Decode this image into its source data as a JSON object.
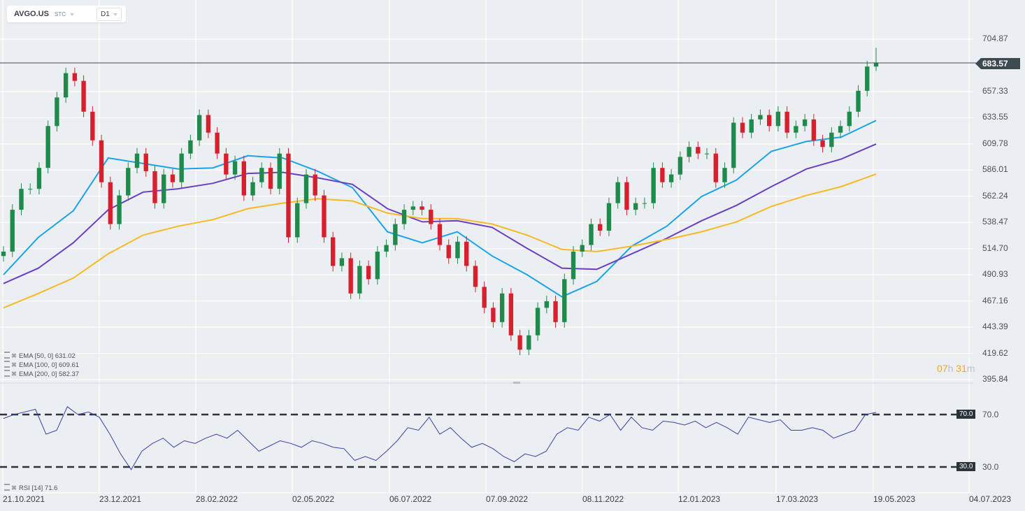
{
  "header": {
    "symbol": "AVGO.US",
    "type": "STC",
    "timeframe": "D1"
  },
  "legend": {
    "ema": [
      "EMA [50,  0] 631.02",
      "EMA [100,  0] 609.61",
      "EMA [200,  0] 582.37"
    ],
    "rsi": "RSI [14] 71.6"
  },
  "countdown": {
    "hours": "07",
    "h": "h",
    "minutes": "31",
    "m": "m"
  },
  "price_axis": [
    "704.87",
    "657.33",
    "633.55",
    "609.78",
    "586.01",
    "562.24",
    "538.47",
    "514.70",
    "490.93",
    "467.16",
    "443.39",
    "419.62",
    "395.84"
  ],
  "current_price": "683.57",
  "rsi_axis": {
    "upper": "70.0",
    "lower": "30.0",
    "upper_tag": "70.0",
    "lower_tag": "30.0"
  },
  "date_axis": [
    "21.10.2021",
    "23.12.2021",
    "28.02.2022",
    "02.05.2022",
    "06.07.2022",
    "07.09.2022",
    "08.11.2022",
    "12.01.2023",
    "17.03.2023",
    "19.05.2023",
    "04.07.2023"
  ],
  "colors": {
    "up": "#1e8a4c",
    "down": "#d81f2e",
    "ema50": "#1aa3e8",
    "ema100": "#6a3fc4",
    "ema200": "#f7b924",
    "rsi": "#3a3fa8",
    "background": "#eceff2"
  },
  "chart_data": [
    {
      "type": "candlestick",
      "ylim": [
        395.84,
        704.87
      ],
      "grid": true,
      "ohlc": [
        [
          508,
          517,
          503,
          512
        ],
        [
          512,
          555,
          507,
          550
        ],
        [
          550,
          574,
          545,
          569
        ],
        [
          569,
          574,
          564,
          569
        ],
        [
          569,
          593,
          564,
          588
        ],
        [
          588,
          631,
          583,
          626
        ],
        [
          626,
          657,
          621,
          652
        ],
        [
          652,
          679,
          647,
          674
        ],
        [
          674,
          679,
          662,
          667
        ],
        [
          667,
          672,
          634,
          639
        ],
        [
          639,
          644,
          608,
          613
        ],
        [
          613,
          618,
          570,
          575
        ],
        [
          575,
          580,
          532,
          537
        ],
        [
          537,
          568,
          532,
          563
        ],
        [
          563,
          593,
          558,
          588
        ],
        [
          588,
          606,
          583,
          601
        ],
        [
          601,
          606,
          580,
          585
        ],
        [
          585,
          590,
          551,
          556
        ],
        [
          556,
          587,
          551,
          582
        ],
        [
          582,
          587,
          570,
          575
        ],
        [
          575,
          606,
          570,
          601
        ],
        [
          601,
          618,
          596,
          613
        ],
        [
          613,
          641,
          608,
          636
        ],
        [
          636,
          641,
          615,
          620
        ],
        [
          620,
          625,
          596,
          601
        ],
        [
          601,
          606,
          577,
          582
        ],
        [
          582,
          599,
          577,
          594
        ],
        [
          594,
          599,
          558,
          563
        ],
        [
          563,
          580,
          558,
          575
        ],
        [
          575,
          593,
          570,
          588
        ],
        [
          588,
          593,
          564,
          569
        ],
        [
          569,
          606,
          564,
          601
        ],
        [
          601,
          606,
          520,
          525
        ],
        [
          525,
          561,
          520,
          556
        ],
        [
          556,
          587,
          551,
          582
        ],
        [
          582,
          587,
          558,
          563
        ],
        [
          563,
          568,
          520,
          525
        ],
        [
          525,
          530,
          494,
          499
        ],
        [
          499,
          511,
          494,
          506
        ],
        [
          506,
          511,
          469,
          474
        ],
        [
          474,
          504,
          469,
          499
        ],
        [
          499,
          504,
          482,
          487
        ],
        [
          487,
          517,
          482,
          512
        ],
        [
          512,
          523,
          507,
          518
        ],
        [
          518,
          542,
          513,
          537
        ],
        [
          537,
          555,
          532,
          550
        ],
        [
          550,
          558,
          545,
          553
        ],
        [
          553,
          558,
          545,
          550
        ],
        [
          550,
          555,
          532,
          537
        ],
        [
          537,
          542,
          513,
          518
        ],
        [
          518,
          523,
          501,
          506
        ],
        [
          506,
          526,
          501,
          521
        ],
        [
          521,
          526,
          494,
          499
        ],
        [
          499,
          504,
          475,
          480
        ],
        [
          480,
          485,
          456,
          461
        ],
        [
          461,
          466,
          443,
          448
        ],
        [
          448,
          479,
          443,
          474
        ],
        [
          474,
          479,
          431,
          436
        ],
        [
          436,
          441,
          418,
          423
        ],
        [
          423,
          441,
          418,
          436
        ],
        [
          436,
          466,
          431,
          461
        ],
        [
          461,
          472,
          456,
          467
        ],
        [
          467,
          472,
          443,
          448
        ],
        [
          448,
          492,
          443,
          487
        ],
        [
          487,
          517,
          482,
          512
        ],
        [
          512,
          523,
          507,
          518
        ],
        [
          518,
          542,
          513,
          537
        ],
        [
          537,
          542,
          526,
          531
        ],
        [
          531,
          561,
          526,
          556
        ],
        [
          556,
          580,
          551,
          575
        ],
        [
          575,
          580,
          545,
          550
        ],
        [
          550,
          561,
          545,
          556
        ],
        [
          556,
          561,
          551,
          556
        ],
        [
          556,
          593,
          551,
          588
        ],
        [
          588,
          593,
          570,
          575
        ],
        [
          575,
          587,
          570,
          582
        ],
        [
          582,
          603,
          577,
          598
        ],
        [
          598,
          612,
          593,
          607
        ],
        [
          607,
          612,
          596,
          601
        ],
        [
          601,
          606,
          596,
          601
        ],
        [
          601,
          606,
          570,
          575
        ],
        [
          575,
          593,
          570,
          588
        ],
        [
          588,
          634,
          583,
          629
        ],
        [
          629,
          634,
          615,
          620
        ],
        [
          620,
          637,
          615,
          632
        ],
        [
          632,
          641,
          627,
          636
        ],
        [
          636,
          641,
          621,
          626
        ],
        [
          626,
          644,
          621,
          639
        ],
        [
          639,
          644,
          615,
          620
        ],
        [
          620,
          631,
          615,
          626
        ],
        [
          626,
          637,
          621,
          632
        ],
        [
          632,
          637,
          608,
          613
        ],
        [
          613,
          618,
          602,
          607
        ],
        [
          607,
          625,
          602,
          620
        ],
        [
          620,
          631,
          615,
          626
        ],
        [
          626,
          644,
          621,
          639
        ],
        [
          639,
          663,
          634,
          658
        ],
        [
          658,
          685,
          653,
          680
        ],
        [
          680,
          697,
          676,
          683.57
        ]
      ],
      "series": [
        {
          "name": "EMA [50,  0]",
          "values": [
            491,
            525,
            549,
            597,
            592,
            587,
            588,
            599,
            597,
            585,
            570,
            530,
            520,
            530,
            508,
            491,
            471,
            485,
            517,
            535,
            562,
            577,
            603,
            612,
            616,
            631.02
          ]
        },
        {
          "name": "EMA [100,  0]",
          "values": [
            483,
            497,
            520,
            550,
            566,
            569,
            574,
            583,
            584,
            579,
            573,
            551,
            539,
            540,
            534,
            515,
            497,
            496,
            510,
            524,
            540,
            554,
            571,
            587,
            596,
            609.61
          ]
        },
        {
          "name": "EMA [200,  0]",
          "values": [
            461,
            474,
            488,
            510,
            527,
            535,
            541,
            551,
            556,
            560,
            558,
            547,
            542,
            542,
            537,
            527,
            514,
            512,
            517,
            523,
            530,
            539,
            553,
            563,
            571,
            582.37
          ]
        }
      ],
      "x_tick_labels": [
        "21.10.2021",
        "23.12.2021",
        "28.02.2022",
        "02.05.2022",
        "06.07.2022",
        "07.09.2022",
        "08.11.2022",
        "12.01.2023",
        "17.03.2023",
        "19.05.2023",
        "04.07.2023"
      ]
    },
    {
      "type": "line",
      "name": "RSI [14]",
      "ylim": [
        30,
        70
      ],
      "reference_lines": [
        70,
        30
      ],
      "values": [
        67,
        70,
        72,
        74,
        55,
        58,
        76,
        70,
        72,
        68,
        55,
        40,
        28,
        42,
        48,
        52,
        45,
        50,
        48,
        52,
        55,
        52,
        58,
        50,
        42,
        46,
        50,
        48,
        45,
        50,
        48,
        45,
        44,
        35,
        38,
        35,
        42,
        50,
        60,
        58,
        68,
        55,
        60,
        52,
        45,
        48,
        44,
        38,
        34,
        40,
        38,
        42,
        55,
        60,
        58,
        68,
        65,
        70,
        58,
        68,
        60,
        58,
        65,
        64,
        62,
        65,
        60,
        64,
        60,
        55,
        68,
        66,
        64,
        66,
        58,
        58,
        60,
        58,
        52,
        55,
        58,
        70,
        71.6
      ]
    }
  ]
}
